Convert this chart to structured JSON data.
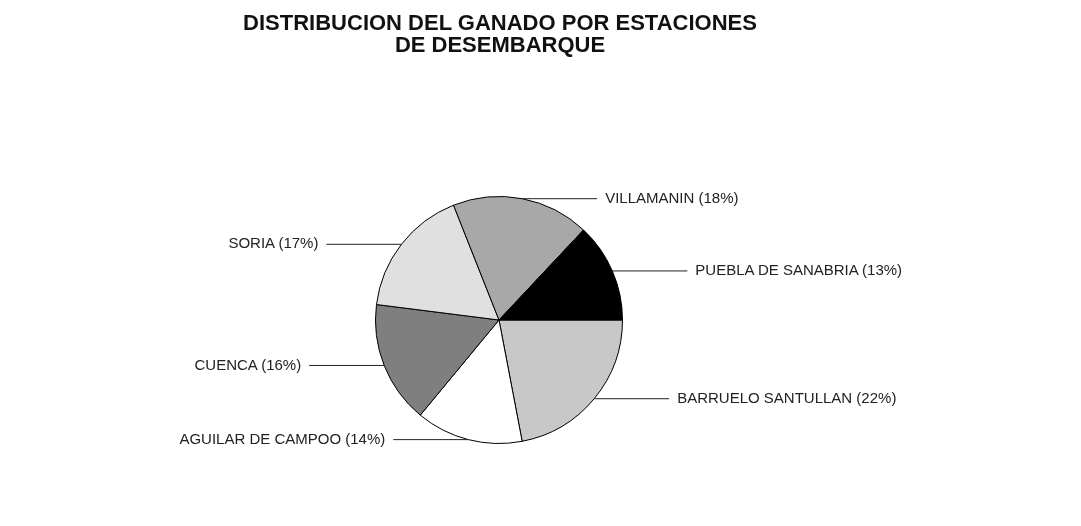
{
  "chart_data": {
    "type": "pie",
    "title": "DISTRIBUCION DEL GANADO POR ESTACIONES DE DESEMBARQUE",
    "categories": [
      "BARRUELO SANTULLAN",
      "AGUILAR DE CAMPOO",
      "CUENCA",
      "SORIA",
      "VILLAMANIN",
      "PUEBLA DE SANABRIA"
    ],
    "values": [
      22,
      14,
      16,
      17,
      18,
      13
    ],
    "value_labels": [
      "(22%)",
      "(14%)",
      "(16%)",
      "(17%)",
      "(18%)",
      "(13%)"
    ],
    "colors": [
      "#c8c8c8",
      "#ffffff",
      "#7f7f7f",
      "#e0e0e0",
      "#a8a8a8",
      "#000000"
    ]
  }
}
